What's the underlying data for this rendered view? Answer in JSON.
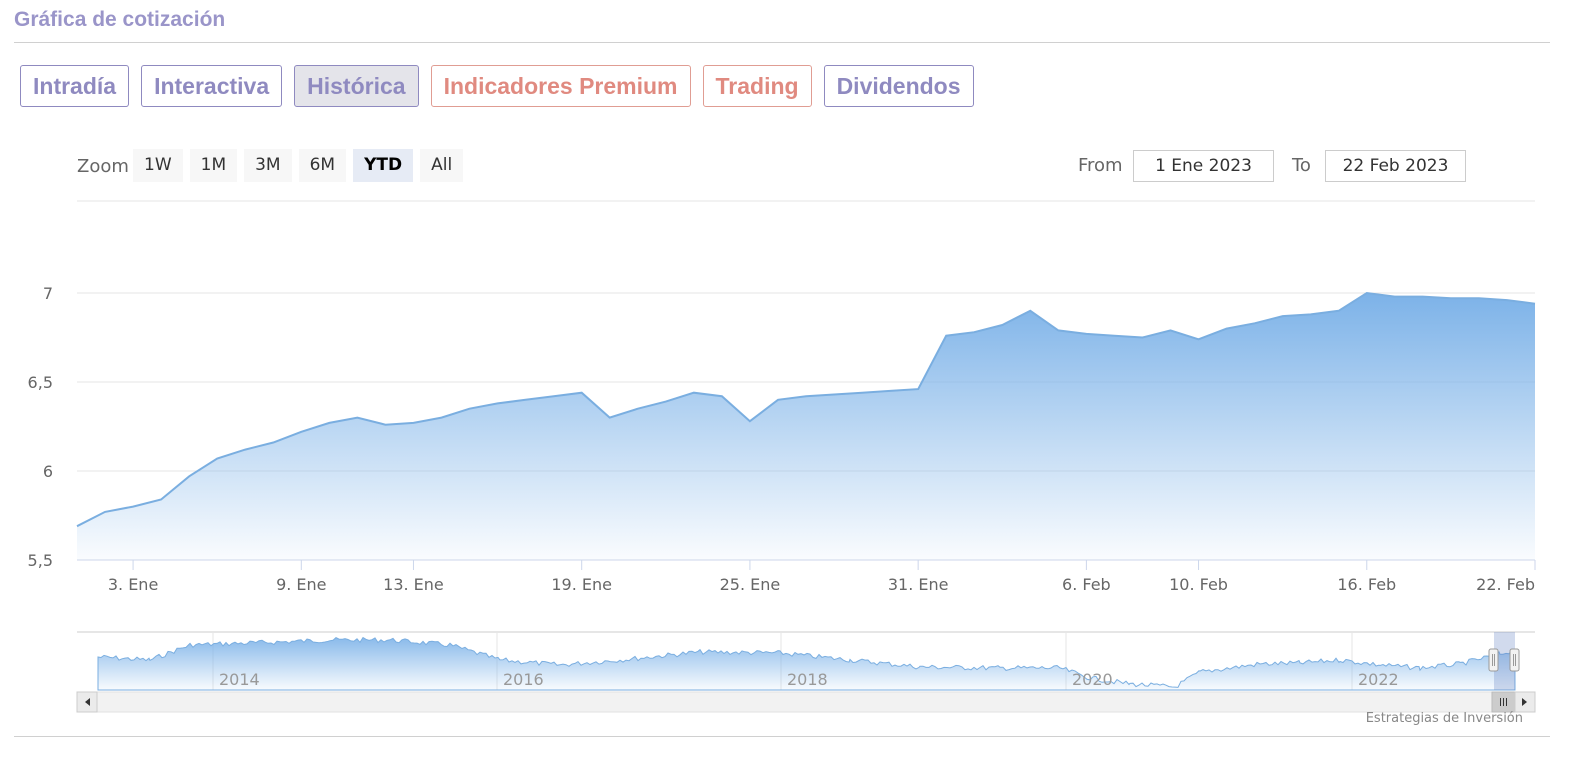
{
  "header": {
    "title": "Gráfica de cotización"
  },
  "tabs": [
    {
      "label": "Intradía",
      "state": "normal"
    },
    {
      "label": "Interactiva",
      "state": "normal"
    },
    {
      "label": "Histórica",
      "state": "active"
    },
    {
      "label": "Indicadores Premium",
      "state": "premium"
    },
    {
      "label": "Trading",
      "state": "premium"
    },
    {
      "label": "Dividendos",
      "state": "normal"
    }
  ],
  "zoom": {
    "label": "Zoom",
    "buttons": [
      "1W",
      "1M",
      "3M",
      "6M",
      "YTD",
      "All"
    ],
    "selected": "YTD"
  },
  "range": {
    "from_label": "From",
    "from_value": "1 Ene 2023",
    "to_label": "To",
    "to_value": "22 Feb 2023"
  },
  "credit": "Estrategias de Inversión",
  "chart_data": {
    "type": "area",
    "x_ticks": [
      "3. Ene",
      "9. Ene",
      "13. Ene",
      "19. Ene",
      "25. Ene",
      "31. Ene",
      "6. Feb",
      "10. Feb",
      "16. Feb",
      "22. Feb"
    ],
    "y_ticks": [
      "5,5",
      "6",
      "6,5",
      "7"
    ],
    "ylim": [
      5.5,
      7.2
    ],
    "x": [
      "2023-01-01",
      "2023-01-02",
      "2023-01-03",
      "2023-01-04",
      "2023-01-05",
      "2023-01-06",
      "2023-01-07",
      "2023-01-08",
      "2023-01-09",
      "2023-01-10",
      "2023-01-11",
      "2023-01-12",
      "2023-01-13",
      "2023-01-14",
      "2023-01-15",
      "2023-01-16",
      "2023-01-17",
      "2023-01-18",
      "2023-01-19",
      "2023-01-20",
      "2023-01-21",
      "2023-01-22",
      "2023-01-23",
      "2023-01-24",
      "2023-01-25",
      "2023-01-26",
      "2023-01-27",
      "2023-01-28",
      "2023-01-29",
      "2023-01-30",
      "2023-01-31",
      "2023-02-01",
      "2023-02-02",
      "2023-02-03",
      "2023-02-04",
      "2023-02-05",
      "2023-02-06",
      "2023-02-07",
      "2023-02-08",
      "2023-02-09",
      "2023-02-10",
      "2023-02-11",
      "2023-02-12",
      "2023-02-13",
      "2023-02-14",
      "2023-02-15",
      "2023-02-16",
      "2023-02-17",
      "2023-02-18",
      "2023-02-19",
      "2023-02-20",
      "2023-02-21",
      "2023-02-22"
    ],
    "values": [
      5.69,
      5.77,
      5.8,
      5.84,
      5.97,
      6.07,
      6.12,
      6.16,
      6.22,
      6.27,
      6.3,
      6.26,
      6.27,
      6.3,
      6.35,
      6.38,
      6.4,
      6.42,
      6.44,
      6.3,
      6.35,
      6.39,
      6.44,
      6.42,
      6.28,
      6.4,
      6.42,
      6.43,
      6.44,
      6.45,
      6.46,
      6.76,
      6.78,
      6.82,
      6.9,
      6.79,
      6.77,
      6.76,
      6.75,
      6.79,
      6.74,
      6.8,
      6.83,
      6.87,
      6.88,
      6.9,
      7.0,
      6.98,
      6.98,
      6.97,
      6.97,
      6.96,
      6.94
    ],
    "navigator": {
      "year_labels": [
        "2014",
        "2016",
        "2018",
        "2020",
        "2022"
      ]
    }
  }
}
